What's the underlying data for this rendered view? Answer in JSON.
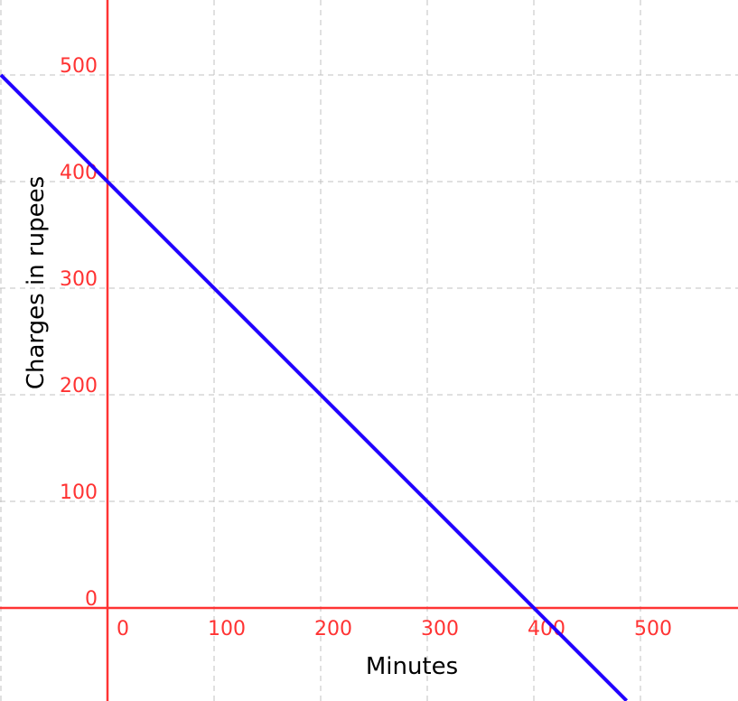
{
  "chart_data": {
    "type": "line",
    "title": "",
    "xlabel": "Minutes",
    "ylabel": "Charges in rupees",
    "xlim": [
      -100,
      591
    ],
    "ylim": [
      -87,
      570
    ],
    "grid": true,
    "x_ticks": [
      0,
      100,
      200,
      300,
      400,
      500
    ],
    "y_ticks": [
      0,
      100,
      200,
      300,
      400,
      500
    ],
    "x_tick_labels": [
      "0",
      "100",
      "200",
      "300",
      "400",
      "500"
    ],
    "y_tick_labels": [
      "0",
      "100",
      "200",
      "300",
      "400",
      "500"
    ],
    "series": [
      {
        "x": [
          -100,
          0,
          100,
          200,
          300,
          400,
          487
        ],
        "y": [
          500,
          400,
          300,
          200,
          100,
          0,
          -87
        ]
      }
    ],
    "colors": {
      "axis": "#ff3333",
      "tick_labels": "#ff3333",
      "line": "#2200ff",
      "grid": "#c0c0c0",
      "axis_labels": "#000000"
    }
  }
}
